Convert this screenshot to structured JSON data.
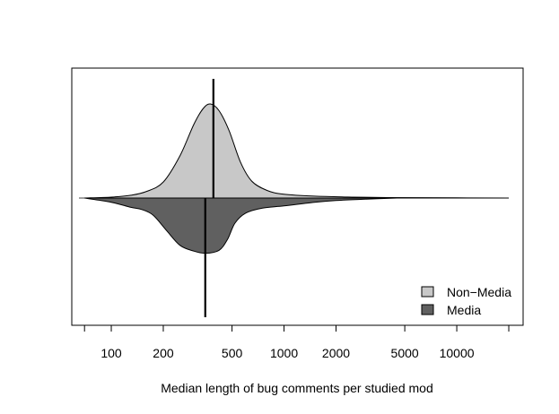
{
  "chart_data": {
    "type": "beanplot",
    "xlabel": "Median length of bug comments per studied mod",
    "x_scale": "log",
    "xlim": [
      65,
      22000
    ],
    "ticks": [
      {
        "value": 70,
        "label": ""
      },
      {
        "value": 100,
        "label": "100"
      },
      {
        "value": 200,
        "label": "200"
      },
      {
        "value": 500,
        "label": "500"
      },
      {
        "value": 1000,
        "label": "1000"
      },
      {
        "value": 2000,
        "label": "2000"
      },
      {
        "value": 5000,
        "label": "5000"
      },
      {
        "value": 10000,
        "label": "10000"
      },
      {
        "value": 20000,
        "label": ""
      }
    ],
    "legend": {
      "position": "bottom-right",
      "entries": [
        {
          "name": "Non−Media",
          "color": "#c8c8c8"
        },
        {
          "name": "Media",
          "color": "#606060"
        }
      ]
    },
    "series": [
      {
        "name": "Non−Media",
        "side": "upper",
        "color": "#c8c8c8",
        "median": 390,
        "density": [
          [
            70,
            0
          ],
          [
            100,
            0.01
          ],
          [
            130,
            0.03
          ],
          [
            160,
            0.07
          ],
          [
            200,
            0.17
          ],
          [
            250,
            0.45
          ],
          [
            300,
            0.78
          ],
          [
            340,
            0.95
          ],
          [
            375,
            1.0
          ],
          [
            420,
            0.93
          ],
          [
            480,
            0.72
          ],
          [
            560,
            0.38
          ],
          [
            650,
            0.18
          ],
          [
            800,
            0.08
          ],
          [
            1000,
            0.04
          ],
          [
            1500,
            0.02
          ],
          [
            2500,
            0.01
          ],
          [
            4000,
            0.005
          ],
          [
            10000,
            0.002
          ],
          [
            20000,
            0
          ]
        ]
      },
      {
        "name": "Media",
        "side": "lower",
        "color": "#606060",
        "median": 350,
        "density": [
          [
            70,
            0
          ],
          [
            85,
            0.03
          ],
          [
            105,
            0.07
          ],
          [
            130,
            0.13
          ],
          [
            150,
            0.16
          ],
          [
            175,
            0.24
          ],
          [
            210,
            0.46
          ],
          [
            250,
            0.66
          ],
          [
            300,
            0.74
          ],
          [
            350,
            0.77
          ],
          [
            420,
            0.73
          ],
          [
            470,
            0.58
          ],
          [
            520,
            0.35
          ],
          [
            600,
            0.21
          ],
          [
            750,
            0.14
          ],
          [
            1000,
            0.11
          ],
          [
            1500,
            0.06
          ],
          [
            2000,
            0.035
          ],
          [
            3000,
            0.015
          ],
          [
            4500,
            0
          ]
        ]
      }
    ]
  }
}
